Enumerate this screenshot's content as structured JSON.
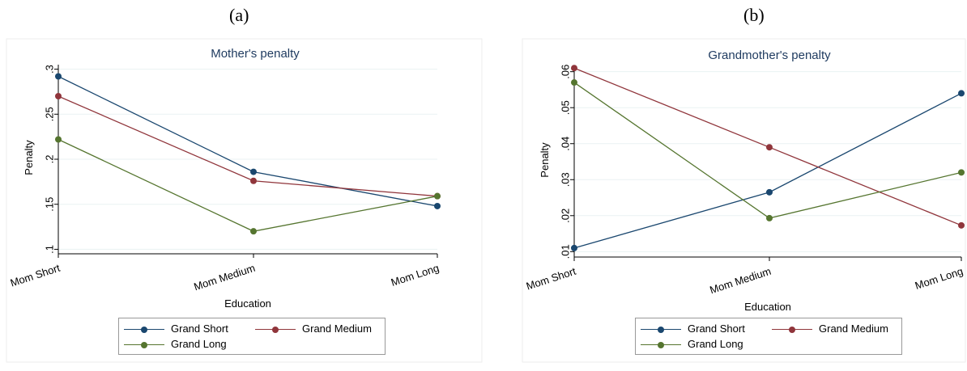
{
  "panels": [
    {
      "label": "(a)"
    },
    {
      "label": "(b)"
    }
  ],
  "chart_data": [
    {
      "type": "line",
      "title": "Mother's penalty",
      "xlabel": "Education",
      "ylabel": "Penalty",
      "categories": [
        "Mom Short",
        "Mom Medium",
        "Mom Long"
      ],
      "yticks": [
        0.1,
        0.15,
        0.2,
        0.25,
        0.3
      ],
      "ytick_labels": [
        ".1",
        ".15",
        ".2",
        ".25",
        ".3"
      ],
      "ylim": [
        0.095,
        0.305
      ],
      "series": [
        {
          "name": "Grand Short",
          "color": "#1a476f",
          "values": [
            0.292,
            0.186,
            0.148
          ]
        },
        {
          "name": "Grand Medium",
          "color": "#90353b",
          "values": [
            0.27,
            0.176,
            0.159
          ]
        },
        {
          "name": "Grand Long",
          "color": "#55752f",
          "values": [
            0.222,
            0.12,
            0.159
          ]
        }
      ],
      "grid": true,
      "legend": "bottom"
    },
    {
      "type": "line",
      "title": "Grandmother's penalty",
      "xlabel": "Education",
      "ylabel": "Penalty",
      "categories": [
        "Mom Short",
        "Mom Medium",
        "Mom Long"
      ],
      "yticks": [
        0.01,
        0.02,
        0.03,
        0.04,
        0.05,
        0.06
      ],
      "ytick_labels": [
        ".01",
        ".02",
        ".03",
        ".04",
        ".05",
        ".06"
      ],
      "ylim": [
        0.0085,
        0.0615
      ],
      "series": [
        {
          "name": "Grand Short",
          "color": "#1a476f",
          "values": [
            0.011,
            0.0265,
            0.054
          ]
        },
        {
          "name": "Grand Medium",
          "color": "#90353b",
          "values": [
            0.061,
            0.039,
            0.0173
          ]
        },
        {
          "name": "Grand Long",
          "color": "#55752f",
          "values": [
            0.057,
            0.0193,
            0.032
          ]
        }
      ],
      "grid": true,
      "legend": "bottom"
    }
  ]
}
